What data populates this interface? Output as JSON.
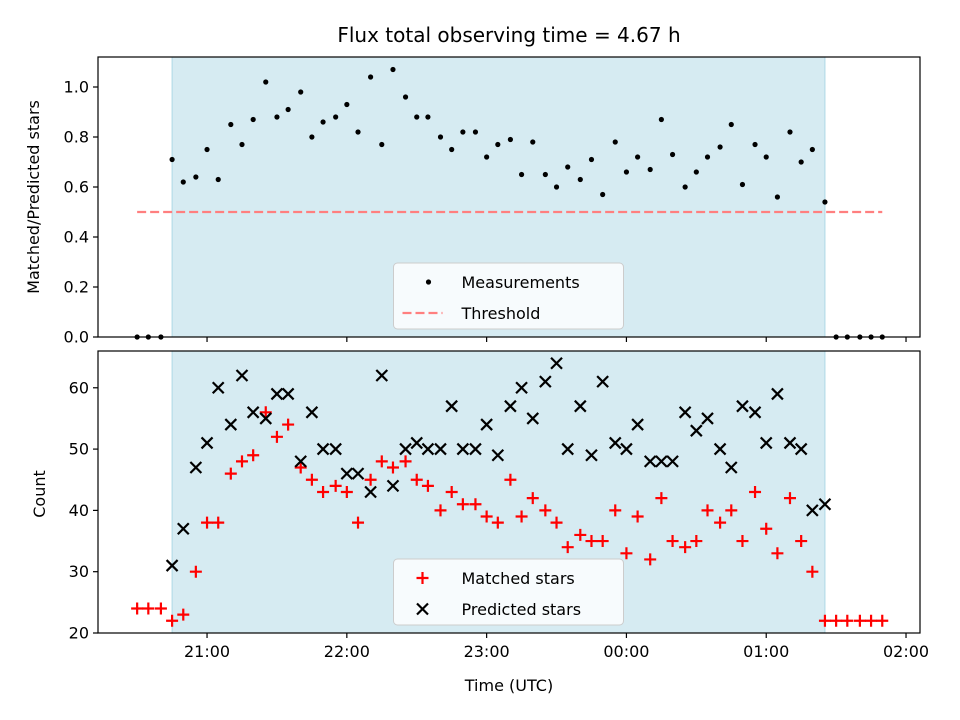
{
  "chart_data": [
    {
      "type": "scatter",
      "title": "Flux total observing time = 4.67 h",
      "xlabel": "",
      "ylabel": "Matched/Predicted stars",
      "ylim": [
        0,
        1.12
      ],
      "yticks": [
        0.0,
        0.2,
        0.4,
        0.6,
        0.8,
        1.0
      ],
      "ytick_labels": [
        "0.0",
        "0.2",
        "0.4",
        "0.6",
        "0.8",
        "1.0"
      ],
      "x_unit": "hours since 21:00 UTC",
      "observing_window": [
        -0.25,
        4.42
      ],
      "legend": {
        "location": "lower-center",
        "entries": [
          "Measurements",
          "Threshold"
        ]
      },
      "series": [
        {
          "name": "Measurements",
          "marker": "dot",
          "color": "#000000",
          "x": [
            -0.5,
            -0.42,
            -0.33,
            -0.25,
            -0.17,
            -0.08,
            0.0,
            0.08,
            0.17,
            0.25,
            0.33,
            0.42,
            0.5,
            0.58,
            0.67,
            0.75,
            0.83,
            0.92,
            1.0,
            1.08,
            1.17,
            1.25,
            1.33,
            1.42,
            1.5,
            1.58,
            1.67,
            1.75,
            1.83,
            1.92,
            2.0,
            2.08,
            2.17,
            2.25,
            2.33,
            2.42,
            2.5,
            2.58,
            2.67,
            2.75,
            2.83,
            2.92,
            3.0,
            3.08,
            3.17,
            3.25,
            3.33,
            3.42,
            3.5,
            3.58,
            3.67,
            3.75,
            3.83,
            3.92,
            4.0,
            4.08,
            4.17,
            4.25,
            4.33,
            4.42,
            4.5,
            4.58,
            4.67,
            4.75,
            4.83
          ],
          "y": [
            0.0,
            0.0,
            0.0,
            0.71,
            0.62,
            0.64,
            0.75,
            0.63,
            0.85,
            0.77,
            0.87,
            1.02,
            0.88,
            0.91,
            0.98,
            0.8,
            0.86,
            0.88,
            0.93,
            0.82,
            1.04,
            0.77,
            1.07,
            0.96,
            0.88,
            0.88,
            0.8,
            0.75,
            0.82,
            0.82,
            0.72,
            0.77,
            0.79,
            0.65,
            0.78,
            0.65,
            0.6,
            0.68,
            0.63,
            0.71,
            0.57,
            0.78,
            0.66,
            0.72,
            0.67,
            0.87,
            0.73,
            0.6,
            0.66,
            0.72,
            0.76,
            0.85,
            0.61,
            0.77,
            0.72,
            0.56,
            0.82,
            0.7,
            0.75,
            0.54,
            0.0,
            0.0,
            0.0,
            0.0,
            0.0
          ]
        },
        {
          "name": "Threshold",
          "style": "dashed",
          "color": "#ff7f7f",
          "x": [
            -0.5,
            4.83
          ],
          "y": [
            0.5,
            0.5
          ]
        }
      ]
    },
    {
      "type": "scatter",
      "title": "",
      "xlabel": "Time (UTC)",
      "ylabel": "Count",
      "ylim": [
        20,
        66
      ],
      "yticks": [
        20,
        30,
        40,
        50,
        60
      ],
      "ytick_labels": [
        "20",
        "30",
        "40",
        "50",
        "60"
      ],
      "x_unit": "hours since 21:00 UTC",
      "xlim": [
        -0.78,
        5.1
      ],
      "xticks": [
        0,
        1,
        2,
        3,
        4,
        5
      ],
      "xtick_labels": [
        "21:00",
        "22:00",
        "23:00",
        "00:00",
        "01:00",
        "02:00"
      ],
      "observing_window": [
        -0.25,
        4.42
      ],
      "legend": {
        "location": "lower-center",
        "entries": [
          "Matched stars",
          "Predicted stars"
        ]
      },
      "series": [
        {
          "name": "Matched stars",
          "marker": "plus",
          "color": "#ff0000",
          "x": [
            -0.5,
            -0.42,
            -0.33,
            -0.25,
            -0.17,
            -0.08,
            0.0,
            0.08,
            0.17,
            0.25,
            0.33,
            0.42,
            0.5,
            0.58,
            0.67,
            0.75,
            0.83,
            0.92,
            1.0,
            1.08,
            1.17,
            1.25,
            1.33,
            1.42,
            1.5,
            1.58,
            1.67,
            1.75,
            1.83,
            1.92,
            2.0,
            2.08,
            2.17,
            2.25,
            2.33,
            2.42,
            2.5,
            2.58,
            2.67,
            2.75,
            2.83,
            2.92,
            3.0,
            3.08,
            3.17,
            3.25,
            3.33,
            3.42,
            3.5,
            3.58,
            3.67,
            3.75,
            3.83,
            3.92,
            4.0,
            4.08,
            4.17,
            4.25,
            4.33,
            4.42,
            4.5,
            4.58,
            4.67,
            4.75,
            4.83
          ],
          "y": [
            24,
            24,
            24,
            22,
            23,
            30,
            38,
            38,
            46,
            48,
            49,
            56,
            52,
            54,
            47,
            45,
            43,
            44,
            43,
            38,
            45,
            48,
            47,
            48,
            45,
            44,
            40,
            43,
            41,
            41,
            39,
            38,
            45,
            39,
            42,
            40,
            38,
            34,
            36,
            35,
            35,
            40,
            33,
            39,
            32,
            42,
            35,
            34,
            35,
            40,
            38,
            40,
            35,
            43,
            37,
            33,
            42,
            35,
            30,
            22,
            22,
            22,
            22,
            22,
            22
          ]
        },
        {
          "name": "Predicted stars",
          "marker": "x",
          "color": "#000000",
          "x": [
            -0.25,
            -0.17,
            -0.08,
            0.0,
            0.08,
            0.17,
            0.25,
            0.33,
            0.42,
            0.5,
            0.58,
            0.67,
            0.75,
            0.83,
            0.92,
            1.0,
            1.08,
            1.17,
            1.25,
            1.33,
            1.42,
            1.5,
            1.58,
            1.67,
            1.75,
            1.83,
            1.92,
            2.0,
            2.08,
            2.17,
            2.25,
            2.33,
            2.42,
            2.5,
            2.58,
            2.67,
            2.75,
            2.83,
            2.92,
            3.0,
            3.08,
            3.17,
            3.25,
            3.33,
            3.42,
            3.5,
            3.58,
            3.67,
            3.75,
            3.83,
            3.92,
            4.0,
            4.08,
            4.17,
            4.25,
            4.33,
            4.42
          ],
          "y": [
            31,
            37,
            47,
            51,
            60,
            54,
            62,
            56,
            55,
            59,
            59,
            48,
            56,
            50,
            50,
            46,
            46,
            43,
            62,
            44,
            50,
            51,
            50,
            50,
            57,
            50,
            50,
            54,
            49,
            57,
            60,
            55,
            61,
            64,
            50,
            57,
            49,
            61,
            51,
            50,
            54,
            48,
            48,
            48,
            56,
            53,
            55,
            50,
            47,
            57,
            56,
            51,
            59,
            51,
            50,
            40,
            41
          ]
        }
      ]
    }
  ]
}
